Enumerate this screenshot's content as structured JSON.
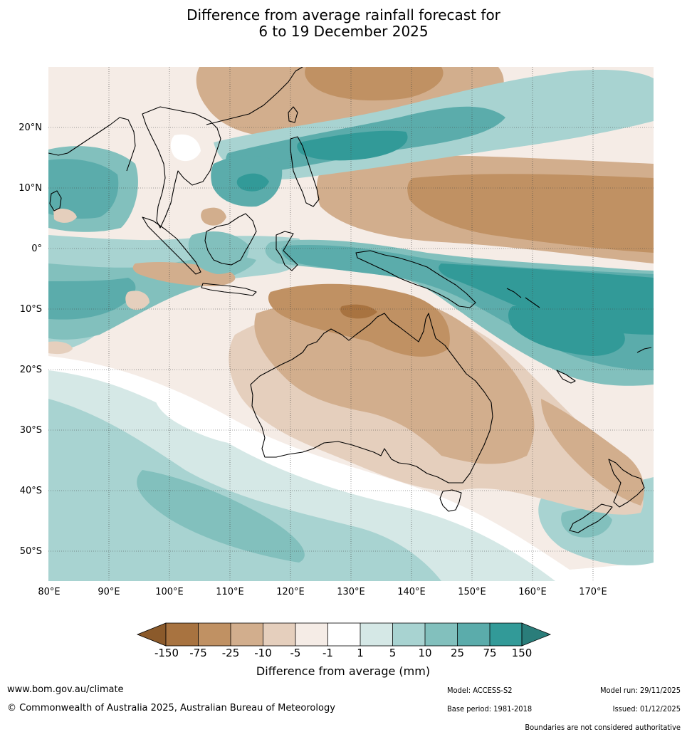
{
  "title": {
    "line1": "Difference from average rainfall forecast for",
    "line2": "6 to 19 December 2025"
  },
  "map": {
    "lon_ticks": [
      "80°E",
      "90°E",
      "100°E",
      "110°E",
      "120°E",
      "130°E",
      "140°E",
      "150°E",
      "160°E",
      "170°E"
    ],
    "lat_ticks": [
      "20°N",
      "10°N",
      "0°",
      "10°S",
      "20°S",
      "30°S",
      "40°S",
      "50°S"
    ],
    "colors": {
      "dry5": "#a87340",
      "dry4": "#c09163",
      "dry3": "#d2ae8d",
      "dry2": "#e5cfbd",
      "dry1": "#f5ece6",
      "neutral": "#ffffff",
      "wet1": "#d5e8e6",
      "wet2": "#a8d3d1",
      "wet3": "#82c0bd",
      "wet4": "#5bacab",
      "wet5": "#329a98",
      "wet6": "#2a7d7a",
      "dry6": "#8b5a2b",
      "coast": "#000000",
      "border": "#808080"
    }
  },
  "colorbar": {
    "tick_labels": [
      "-150",
      "-75",
      "-25",
      "-10",
      "-5",
      "-1",
      "1",
      "5",
      "10",
      "25",
      "75",
      "150"
    ],
    "label": "Difference from average (mm)",
    "colors": [
      "#a87340",
      "#c09163",
      "#d2ae8d",
      "#e5cfbd",
      "#f5ece6",
      "#ffffff",
      "#d5e8e6",
      "#a8d3d1",
      "#82c0bd",
      "#5bacab",
      "#329a98"
    ],
    "under_color": "#8b5a2b",
    "over_color": "#2a7d7a"
  },
  "footer": {
    "website": "www.bom.gov.au/climate",
    "copyright": "© Commonwealth of Australia 2025, Australian Bureau of Meteorology",
    "model": "Model: ACCESS-S2",
    "base_period": "Base period: 1981-2018",
    "model_run": "Model run: 29/11/2025",
    "issued": "Issued: 01/12/2025",
    "boundaries": "Boundaries are not considered authoritative"
  }
}
